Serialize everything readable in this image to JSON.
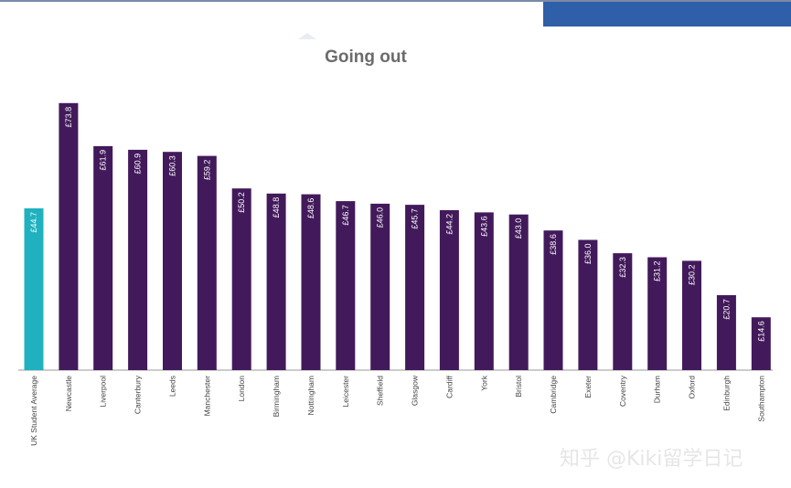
{
  "chart_data": {
    "type": "bar",
    "title": "Going out",
    "categories": [
      "UK Student Average",
      "Newcastle",
      "Liverpool",
      "Canterbury",
      "Leeds",
      "Manchester",
      "London",
      "Birmingham",
      "Nottingham",
      "Leicester",
      "Sheffield",
      "Glasgow",
      "Cardiff",
      "York",
      "Bristol",
      "Cambridge",
      "Exeter",
      "Coventry",
      "Durham",
      "Oxford",
      "Edinburgh",
      "Southampton"
    ],
    "values": [
      44.7,
      73.8,
      61.9,
      60.9,
      60.3,
      59.2,
      50.2,
      48.8,
      48.6,
      46.7,
      46.0,
      45.7,
      44.2,
      43.6,
      43.0,
      38.6,
      36.0,
      32.3,
      31.2,
      30.2,
      20.7,
      14.6
    ],
    "value_labels": [
      "£44.7",
      "£73.8",
      "£61.9",
      "£60.9",
      "£60.3",
      "£59.2",
      "£50.2",
      "£48.8",
      "£48.6",
      "£46.7",
      "£46.0",
      "£45.7",
      "£44.2",
      "£43.6",
      "£43.0",
      "£38.6",
      "£36.0",
      "£32.3",
      "£31.2",
      "£30.2",
      "£20.7",
      "£14.6"
    ],
    "highlight_index": 0,
    "colors": {
      "highlight": "#1fb1bf",
      "bar": "#421a5b",
      "axis": "#9a9a9a",
      "label": "#444444",
      "value_text": "#ffffff"
    },
    "ylim": [
      0,
      74
    ],
    "grid": false,
    "legend": "none"
  },
  "watermark": "知乎 @Kiki留学日记"
}
